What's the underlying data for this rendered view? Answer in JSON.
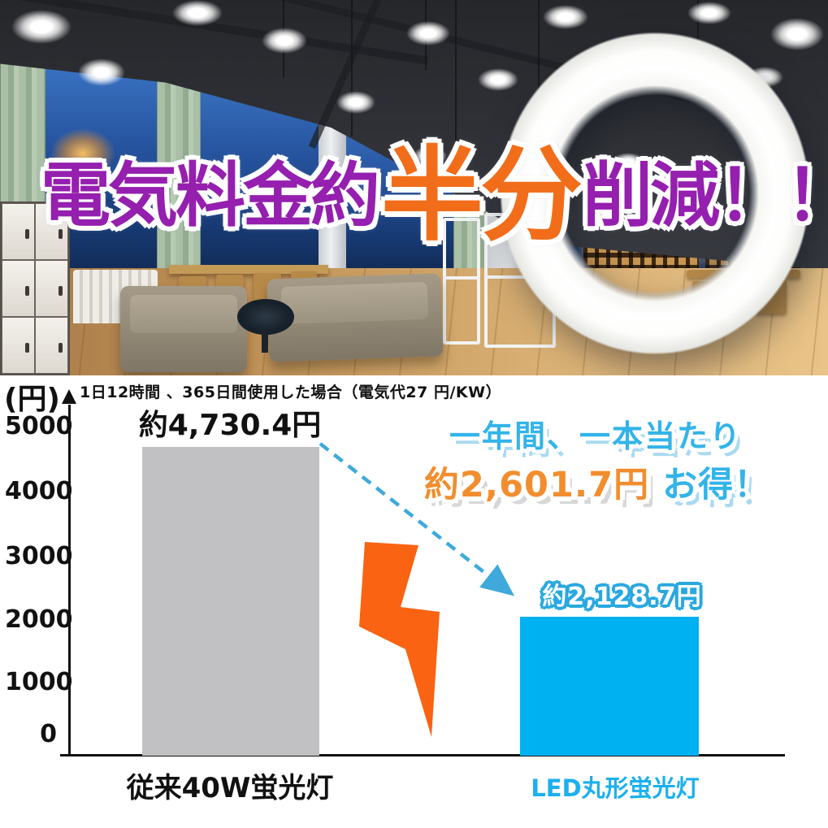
{
  "headline": {
    "part1": "電気料金約",
    "part2": "半分",
    "part3": "削減！！",
    "color_purple": "#951fae",
    "color_orange": "#f26d1a"
  },
  "chart_data": {
    "type": "bar",
    "note": "1日12時間 、365日間使用した場合（電気代27 円/KW）",
    "unit_label": "(円)",
    "categories": [
      "従来40W蛍光灯",
      "LED丸形蛍光灯"
    ],
    "values": [
      4730.4,
      2128.7
    ],
    "bar_labels": [
      "約4,730.4円",
      "約2,128.7円"
    ],
    "bar_colors": [
      "#c1c1c3",
      "#00b1f2"
    ],
    "category_colors": [
      "#111111",
      "#1cb0ee"
    ],
    "yticks": [
      "5000",
      "4000",
      "3000",
      "2000",
      "1000",
      "0"
    ],
    "ylim": [
      0,
      5000
    ],
    "grid": false,
    "legend": "none",
    "annotations": {
      "savings_line1": "一年間、一本当たり",
      "savings_amount": "約2,601.7円",
      "savings_suffix": " お得！"
    },
    "accent_colors": {
      "cyan_text": "#33b4e9",
      "orange_text": "#f28d2e",
      "lightning_bolt": "#f96311",
      "dashed_arrow": "#3fa9dc"
    }
  }
}
